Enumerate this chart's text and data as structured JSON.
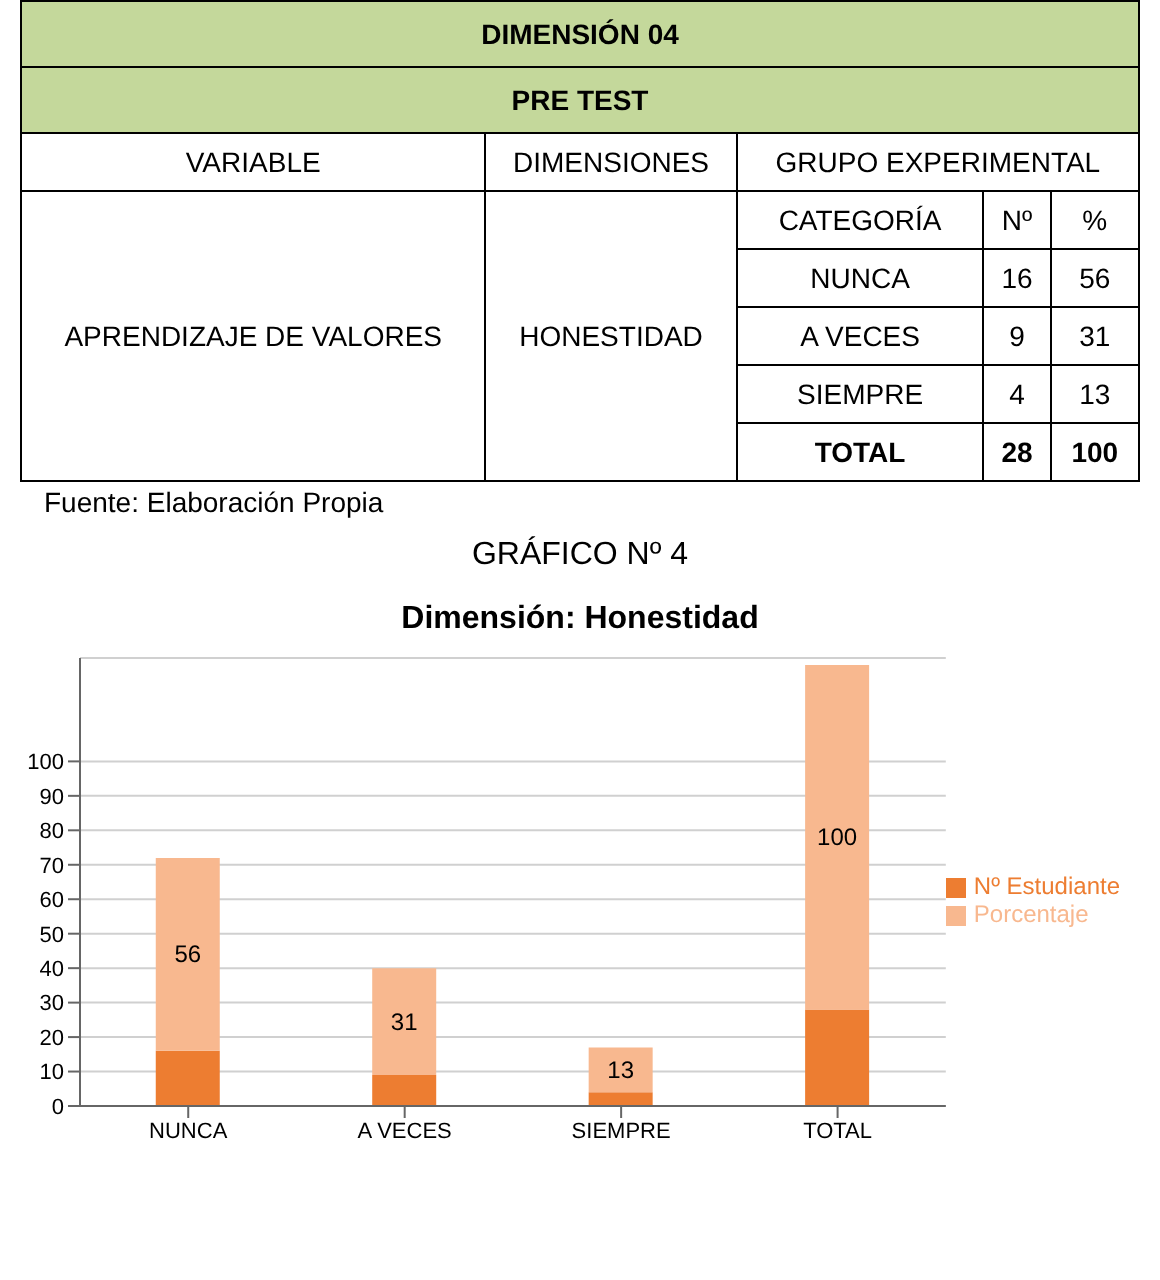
{
  "chart_data": [
    {
      "type": "other",
      "title": "DIMENSIÓN 04",
      "subtitle": "PRE TEST",
      "annotations": [
        "VARIABLE",
        "DIMENSIONES",
        "GRUPO EXPERIMENTAL",
        "APRENDIZAJE DE VALORES",
        "HONESTIDAD",
        "CATEGORÍA",
        "Nº",
        "%",
        "NUNCA",
        "16",
        "56",
        "A VECES",
        "9",
        "31",
        "SIEMPRE",
        "4",
        "13",
        "TOTAL",
        "28",
        "100",
        "Fuente: Elaboración Propia",
        "GRÁFICO Nº 4"
      ]
    },
    {
      "type": "bar",
      "title": "Dimensión: Honestidad",
      "stacked": true,
      "categories": [
        "NUNCA",
        "A VECES",
        "SIEMPRE",
        "TOTAL"
      ],
      "series": [
        {
          "name": "Nº Estudiante",
          "color": "#ed7d31",
          "values": [
            16,
            9,
            4,
            28
          ]
        },
        {
          "name": "Porcentaje",
          "color": "#f8b88f",
          "values": [
            56,
            31,
            13,
            100
          ],
          "value_labels": [
            "56",
            "31",
            "13",
            "100"
          ]
        }
      ],
      "ylim": [
        0,
        130
      ],
      "yticks": [
        0,
        10,
        20,
        30,
        40,
        50,
        60,
        70,
        80,
        90,
        100
      ],
      "grid": "y",
      "legend": "right"
    }
  ]
}
